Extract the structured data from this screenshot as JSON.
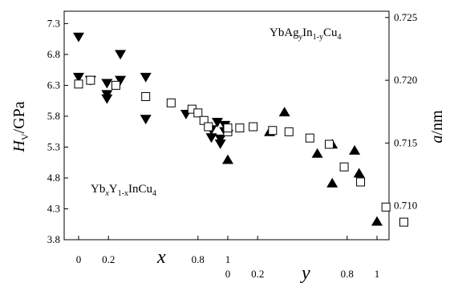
{
  "chart_data": {
    "type": "scatter",
    "annotations": {
      "top_right": {
        "a": "YbAg",
        "b": "y",
        "c": "In",
        "d": "1-y",
        "e": "Cu",
        "f": "4"
      },
      "bottom_left": {
        "a": "Yb",
        "b": "x",
        "c": "Y",
        "d": "1-x",
        "e": "InCu",
        "f": "4"
      }
    },
    "ylabel_left": {
      "main": "H",
      "sub": "V",
      "rest": "/GPa"
    },
    "ylabel_right": {
      "main": "a",
      "rest": "/nm"
    },
    "x_symbol_1": "x",
    "x_symbol_2": "y",
    "left_axis": {
      "ylim": [
        3.8,
        7.5
      ],
      "ticks": [
        {
          "v": 3.8,
          "label": "3.8"
        },
        {
          "v": 4.3,
          "label": "4.3"
        },
        {
          "v": 4.8,
          "label": "4.8"
        },
        {
          "v": 5.3,
          "label": "5.3"
        },
        {
          "v": 5.8,
          "label": "5.8"
        },
        {
          "v": 6.3,
          "label": "6.3"
        },
        {
          "v": 6.8,
          "label": "6.8"
        },
        {
          "v": 7.3,
          "label": "7.3"
        }
      ]
    },
    "right_axis": {
      "ylim": [
        0.7073,
        0.7255
      ],
      "ticks": [
        {
          "v": 0.71,
          "label": "0.710"
        },
        {
          "v": 0.715,
          "label": "0.715"
        },
        {
          "v": 0.72,
          "label": "0.720"
        },
        {
          "v": 0.725,
          "label": "0.725"
        }
      ]
    },
    "x_axis_1": {
      "name": "x",
      "range": [
        0,
        1
      ],
      "ticks": [
        {
          "v": 0,
          "label": "0"
        },
        {
          "v": 0.2,
          "label": "0.2"
        },
        {
          "v": 0.8,
          "label": "0.8"
        },
        {
          "v": 1,
          "label": "1"
        }
      ]
    },
    "x_axis_2": {
      "name": "y",
      "range": [
        0,
        1
      ],
      "ticks": [
        {
          "v": 0,
          "label": "0"
        },
        {
          "v": 0.2,
          "label": "0.2"
        },
        {
          "v": 0.8,
          "label": "0.8"
        },
        {
          "v": 1,
          "label": "1"
        }
      ]
    },
    "series": [
      {
        "marker": "triangle-down-filled",
        "axis": "left",
        "x_axis": "x",
        "points": [
          [
            0.0,
            7.08
          ],
          [
            0.0,
            6.43
          ],
          [
            0.08,
            6.38
          ],
          [
            0.19,
            6.33
          ],
          [
            0.19,
            6.15
          ],
          [
            0.19,
            6.08
          ],
          [
            0.28,
            6.8
          ],
          [
            0.28,
            6.38
          ],
          [
            0.45,
            6.43
          ],
          [
            0.45,
            5.75
          ],
          [
            0.72,
            5.83
          ],
          [
            0.89,
            5.58
          ],
          [
            0.89,
            5.45
          ],
          [
            0.93,
            5.7
          ],
          [
            0.95,
            5.43
          ],
          [
            0.95,
            5.35
          ],
          [
            0.98,
            5.65
          ],
          [
            0.98,
            5.55
          ]
        ]
      },
      {
        "marker": "triangle-up-filled",
        "axis": "left",
        "x_axis": "y",
        "points": [
          [
            0.0,
            5.1
          ],
          [
            0.0,
            5.63
          ],
          [
            0.28,
            5.55
          ],
          [
            0.38,
            5.87
          ],
          [
            0.6,
            5.2
          ],
          [
            0.7,
            5.35
          ],
          [
            0.7,
            4.72
          ],
          [
            0.85,
            5.25
          ],
          [
            0.88,
            4.88
          ],
          [
            1.0,
            4.1
          ]
        ]
      },
      {
        "marker": "square-open",
        "axis": "right",
        "x_axis": "x",
        "points": [
          [
            0.0,
            0.7197
          ],
          [
            0.08,
            0.72
          ],
          [
            0.25,
            0.7196
          ],
          [
            0.45,
            0.7187
          ],
          [
            0.62,
            0.7182
          ],
          [
            0.76,
            0.7177
          ],
          [
            0.8,
            0.7174
          ],
          [
            0.84,
            0.7168
          ],
          [
            0.87,
            0.7163
          ],
          [
            1.0,
            0.7159
          ],
          [
            1.0,
            0.7162
          ]
        ]
      },
      {
        "marker": "square-open",
        "axis": "right",
        "x_axis": "y",
        "points": [
          [
            0.08,
            0.7162
          ],
          [
            0.17,
            0.7163
          ],
          [
            0.3,
            0.716
          ],
          [
            0.41,
            0.7159
          ],
          [
            0.55,
            0.7154
          ],
          [
            0.68,
            0.7149
          ],
          [
            0.78,
            0.7131
          ],
          [
            0.89,
            0.7119
          ],
          [
            1.06,
            0.7099
          ],
          [
            1.18,
            0.7087
          ]
        ]
      }
    ]
  }
}
